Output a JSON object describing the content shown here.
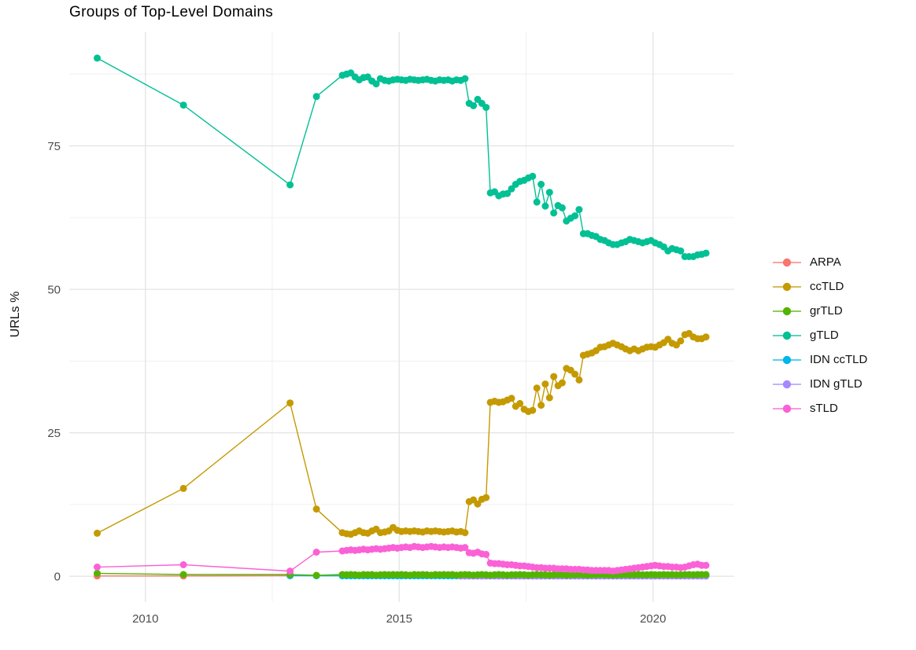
{
  "chart_data": {
    "type": "line",
    "title": "Groups of Top-Level Domains",
    "ylabel": "URLs %",
    "xlabel": "",
    "grid": true,
    "legend_position": "right",
    "xlim": [
      2008.5,
      2021.6
    ],
    "ylim": [
      -4.5,
      94.8
    ],
    "x_ticks": [
      2010,
      2015,
      2020
    ],
    "x_tick_labels": [
      "2010",
      "2015",
      "2020"
    ],
    "y_ticks": [
      0,
      25,
      50,
      75
    ],
    "y_tick_labels": [
      "0",
      "25",
      "50",
      "75"
    ],
    "x_minor": [
      2012.5,
      2017.5
    ],
    "y_minor": [
      12.5,
      37.5,
      62.5,
      87.5
    ],
    "draw_order": [
      "ARPA",
      "IDN ccTLD",
      "IDN gTLD",
      "grTLD",
      "sTLD",
      "ccTLD",
      "gTLD"
    ],
    "series": [
      {
        "name": "ARPA",
        "color": "#F8766D",
        "points": [
          [
            2009.05,
            0.05
          ],
          [
            2010.75,
            0.05
          ],
          [
            2012.85,
            0.1
          ]
        ]
      },
      {
        "name": "ccTLD",
        "color": "#C49A00",
        "points": [
          [
            2009.05,
            7.5
          ],
          [
            2010.75,
            15.3
          ],
          [
            2012.85,
            30.2
          ],
          [
            2013.37,
            11.7
          ]
        ],
        "dense": {
          "x_start": 2013.88,
          "x_step": 0.0833,
          "values": [
            7.6,
            7.4,
            7.3,
            7.6,
            7.9,
            7.6,
            7.5,
            7.9,
            8.2,
            7.6,
            7.7,
            7.9,
            8.5,
            8.0,
            7.8,
            7.9,
            7.8,
            7.9,
            7.8,
            7.7,
            7.9,
            7.8,
            7.9,
            7.8,
            7.7,
            7.8,
            7.9,
            7.7,
            7.8,
            7.6,
            13.0,
            13.3,
            12.6,
            13.4,
            13.7,
            30.3,
            30.5,
            30.3,
            30.4,
            30.7,
            31.0,
            29.6,
            30.1,
            29.1,
            28.7,
            28.9,
            32.8,
            29.8,
            33.5,
            31.1,
            34.8,
            33.2,
            33.7,
            36.2,
            35.9,
            35.2,
            34.2,
            38.5,
            38.7,
            38.9,
            39.3,
            39.9,
            40.0,
            40.3,
            40.6,
            40.3,
            40.0,
            39.6,
            39.3,
            39.6,
            39.3,
            39.6,
            39.9,
            40.0,
            39.9,
            40.3,
            40.7,
            41.3,
            40.6,
            40.3,
            41.0,
            42.1,
            42.3,
            41.7,
            41.4,
            41.4,
            41.7
          ]
        }
      },
      {
        "name": "grTLD",
        "color": "#53B400",
        "points": [
          [
            2009.05,
            0.5
          ],
          [
            2010.75,
            0.3
          ],
          [
            2012.85,
            0.3
          ],
          [
            2013.37,
            0.15
          ]
        ],
        "dense": {
          "x_start": 2013.88,
          "x_step": 0.0833,
          "values": [
            0.3,
            0.25,
            0.3,
            0.25,
            0.2,
            0.3,
            0.25,
            0.3,
            0.2,
            0.25,
            0.3,
            0.25,
            0.3,
            0.25,
            0.3,
            0.25,
            0.2,
            0.3,
            0.25,
            0.3,
            0.25,
            0.2,
            0.3,
            0.25,
            0.3,
            0.25,
            0.3,
            0.2,
            0.25,
            0.3,
            0.25,
            0.2,
            0.25,
            0.3,
            0.25,
            0.2,
            0.25,
            0.3,
            0.25,
            0.2,
            0.25,
            0.25,
            0.3,
            0.25,
            0.2,
            0.25,
            0.3,
            0.25,
            0.25,
            0.2,
            0.25,
            0.3,
            0.25,
            0.2,
            0.25,
            0.25,
            0.3,
            0.25,
            0.2,
            0.25,
            0.25,
            0.3,
            0.25,
            0.25,
            0.2,
            0.25,
            0.25,
            0.3,
            0.25,
            0.25,
            0.3,
            0.25,
            0.25,
            0.3,
            0.25,
            0.25,
            0.3,
            0.25,
            0.3,
            0.25,
            0.25,
            0.3,
            0.3,
            0.25,
            0.3,
            0.3,
            0.3
          ]
        }
      },
      {
        "name": "gTLD",
        "color": "#00C094",
        "points": [
          [
            2009.05,
            90.3
          ],
          [
            2010.75,
            82.1
          ],
          [
            2012.85,
            68.2
          ],
          [
            2013.37,
            83.6
          ]
        ],
        "dense": {
          "x_start": 2013.88,
          "x_step": 0.0833,
          "values": [
            87.3,
            87.5,
            87.7,
            87.0,
            86.5,
            86.9,
            87.0,
            86.3,
            85.8,
            86.7,
            86.4,
            86.3,
            86.5,
            86.6,
            86.5,
            86.4,
            86.6,
            86.5,
            86.4,
            86.5,
            86.6,
            86.4,
            86.3,
            86.5,
            86.4,
            86.5,
            86.3,
            86.5,
            86.4,
            86.7,
            82.4,
            82.0,
            83.1,
            82.4,
            81.7,
            66.8,
            67.0,
            66.3,
            66.6,
            66.7,
            67.5,
            68.3,
            68.8,
            69.0,
            69.4,
            69.7,
            65.2,
            68.3,
            64.5,
            66.9,
            63.3,
            64.6,
            64.2,
            61.9,
            62.4,
            62.8,
            63.9,
            59.7,
            59.7,
            59.4,
            59.2,
            58.7,
            58.5,
            58.1,
            57.8,
            57.8,
            58.1,
            58.3,
            58.7,
            58.5,
            58.3,
            58.1,
            58.3,
            58.5,
            58.1,
            57.8,
            57.4,
            56.7,
            57.1,
            56.9,
            56.7,
            55.7,
            55.7,
            55.7,
            56.0,
            56.1,
            56.3
          ]
        }
      },
      {
        "name": "IDN ccTLD",
        "color": "#00B6EB",
        "points": [
          [
            2012.85,
            0.1
          ],
          [
            2013.37,
            0.08
          ]
        ],
        "dense": {
          "x_start": 2013.88,
          "x_step": 0.0833,
          "values": [
            0.08,
            0.08,
            0.08,
            0.08,
            0.08,
            0.08,
            0.08,
            0.08,
            0.08,
            0.08,
            0.08,
            0.08,
            0.08,
            0.08,
            0.08,
            0.08,
            0.08,
            0.08,
            0.08,
            0.08,
            0.08,
            0.08,
            0.08,
            0.08,
            0.08,
            0.08,
            0.08,
            0.08,
            0.08,
            0.08,
            0.08,
            0.08,
            0.08,
            0.08,
            0.08,
            0.08,
            0.08,
            0.08,
            0.08,
            0.08,
            0.08,
            0.08,
            0.08,
            0.08,
            0.08,
            0.08,
            0.08,
            0.08,
            0.08,
            0.08,
            0.08,
            0.08,
            0.08,
            0.08,
            0.08,
            0.08,
            0.08,
            0.08,
            0.08,
            0.08,
            0.08,
            0.08,
            0.08,
            0.08,
            0.08,
            0.08,
            0.08,
            0.08,
            0.08,
            0.08,
            0.08,
            0.08,
            0.08,
            0.08,
            0.08,
            0.08,
            0.08,
            0.08,
            0.08,
            0.08,
            0.08,
            0.08,
            0.08,
            0.08,
            0.08,
            0.08,
            0.08
          ]
        }
      },
      {
        "name": "IDN gTLD",
        "color": "#A58AFF",
        "points": [],
        "dense": {
          "x_start": 2016.21,
          "x_step": 0.0833,
          "values": [
            0.04,
            0.04,
            0.04,
            0.04,
            0.04,
            0.04,
            0.04,
            0.04,
            0.04,
            0.04,
            0.04,
            0.04,
            0.04,
            0.04,
            0.04,
            0.04,
            0.04,
            0.04,
            0.04,
            0.04,
            0.04,
            0.04,
            0.04,
            0.04,
            0.04,
            0.04,
            0.04,
            0.04,
            0.04,
            0.04,
            0.04,
            0.04,
            0.04,
            0.04,
            0.04,
            0.04,
            0.04,
            0.04,
            0.04,
            0.04,
            0.04,
            0.04,
            0.04,
            0.04,
            0.04,
            0.04,
            0.04,
            0.04,
            0.04,
            0.04,
            0.04,
            0.04,
            0.04,
            0.04,
            0.04,
            0.04,
            0.04,
            0.04,
            0.04
          ]
        }
      },
      {
        "name": "sTLD",
        "color": "#FB61D7",
        "points": [
          [
            2009.05,
            1.6
          ],
          [
            2010.75,
            2.0
          ],
          [
            2012.85,
            0.9
          ],
          [
            2013.37,
            4.2
          ]
        ],
        "dense": {
          "x_start": 2013.88,
          "x_step": 0.0833,
          "values": [
            4.4,
            4.5,
            4.6,
            4.5,
            4.6,
            4.7,
            4.6,
            4.7,
            4.8,
            4.7,
            4.8,
            4.9,
            5.0,
            4.9,
            5.0,
            5.1,
            5.0,
            5.2,
            5.1,
            5.0,
            5.1,
            5.2,
            5.1,
            5.0,
            5.1,
            5.0,
            5.1,
            5.0,
            4.9,
            5.0,
            4.1,
            4.0,
            4.2,
            3.9,
            3.8,
            2.3,
            2.2,
            2.2,
            2.1,
            2.0,
            2.0,
            1.9,
            1.8,
            1.8,
            1.7,
            1.6,
            1.5,
            1.5,
            1.4,
            1.4,
            1.4,
            1.3,
            1.3,
            1.3,
            1.2,
            1.2,
            1.2,
            1.1,
            1.1,
            1.0,
            1.0,
            1.0,
            1.0,
            1.0,
            0.9,
            1.0,
            1.1,
            1.2,
            1.3,
            1.4,
            1.5,
            1.6,
            1.7,
            1.8,
            1.9,
            1.8,
            1.7,
            1.7,
            1.6,
            1.6,
            1.5,
            1.6,
            1.8,
            2.0,
            2.1,
            1.9,
            1.9
          ]
        }
      }
    ]
  }
}
